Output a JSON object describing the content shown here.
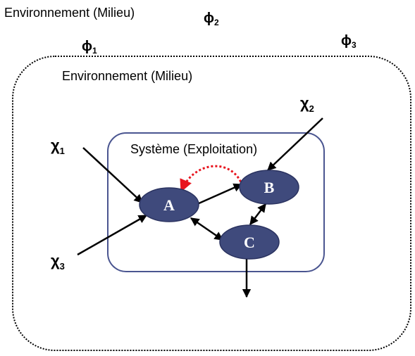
{
  "outer_environment_label": "Environnement (Milieu)",
  "inner_environment_label": "Environnement (Milieu)",
  "system_label": "Système (Exploitation)",
  "phi": [
    {
      "base": "ϕ",
      "sub": "1"
    },
    {
      "base": "ϕ",
      "sub": "2"
    },
    {
      "base": "ϕ",
      "sub": "3"
    }
  ],
  "chi": [
    {
      "base": "χ",
      "sub": "1"
    },
    {
      "base": "χ",
      "sub": "2"
    },
    {
      "base": "χ",
      "sub": "3"
    }
  ],
  "nodes": {
    "a": "A",
    "b": "B",
    "c": "C"
  },
  "colors": {
    "node_fill": "#3f4a7c",
    "system_border": "#4a5590",
    "feedback_arrow": "#e8141e",
    "line": "#000000"
  }
}
